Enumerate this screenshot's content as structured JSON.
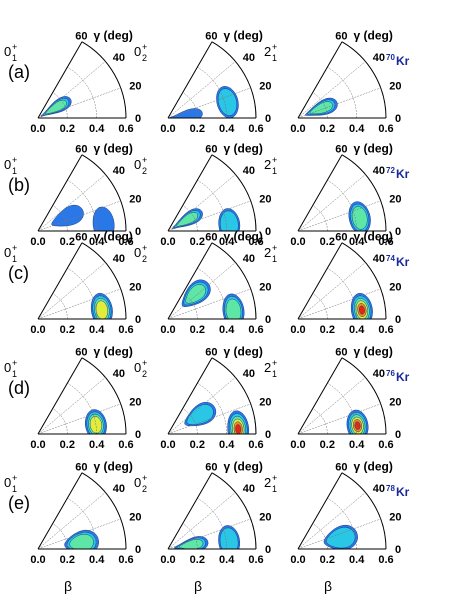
{
  "figure": {
    "row_labels": [
      "(a)",
      "(b)",
      "(c)",
      "(d)",
      "(e)"
    ],
    "isotopes": [
      {
        "mass": "70",
        "symbol": "Kr"
      },
      {
        "mass": "72",
        "symbol": "Kr"
      },
      {
        "mass": "74",
        "symbol": "Kr"
      },
      {
        "mass": "76",
        "symbol": "Kr"
      },
      {
        "mass": "78",
        "symbol": "Kr"
      }
    ],
    "column_states": [
      {
        "main": "0",
        "sup": "+",
        "sub": "1"
      },
      {
        "main": "0",
        "sup": "+",
        "sub": "2"
      },
      {
        "main": "2",
        "sup": "+",
        "sub": "1"
      }
    ],
    "gamma_axis_label": "γ (deg)",
    "beta_axis_label": "β",
    "beta_ticks": [
      "0.0",
      "0.2",
      "0.4",
      "0.6"
    ],
    "gamma_ticks": [
      "0",
      "20",
      "40",
      "60"
    ]
  },
  "chart_data": {
    "type": "heatmap",
    "description_kind": "polar contour maps of collective wave function squared in (beta, gamma) plane",
    "axes": {
      "r": {
        "label": "β",
        "range": [
          0.0,
          0.6
        ],
        "ticks": [
          0.0,
          0.2,
          0.4,
          0.6
        ]
      },
      "theta": {
        "label": "γ (deg)",
        "range": [
          0,
          60
        ],
        "ticks": [
          0,
          20,
          40,
          60
        ]
      }
    },
    "colors": [
      "#2a78e8",
      "#29c6e6",
      "#5ee6a6",
      "#e2ec3a",
      "#f28a1c",
      "#e02814"
    ],
    "panels": [
      {
        "row": "(a)",
        "isotope": "70Kr",
        "state": "0+1",
        "peaks": [
          {
            "beta": 0.14,
            "gamma": 30,
            "level": 3
          }
        ]
      },
      {
        "row": "(a)",
        "isotope": "70Kr",
        "state": "0+2",
        "peaks": [
          {
            "beta": 0.12,
            "gamma": 8,
            "level": 1
          },
          {
            "beta": 0.42,
            "gamma": 15,
            "level": 2
          }
        ]
      },
      {
        "row": "(a)",
        "isotope": "70Kr",
        "state": "2+1",
        "peaks": [
          {
            "beta": 0.17,
            "gamma": 22,
            "level": 3
          }
        ]
      },
      {
        "row": "(b)",
        "isotope": "72Kr",
        "state": "0+1",
        "peaks": [
          {
            "beta": 0.22,
            "gamma": 25,
            "level": 1
          },
          {
            "beta": 0.45,
            "gamma": 6,
            "level": 1
          }
        ]
      },
      {
        "row": "(b)",
        "isotope": "72Kr",
        "state": "0+2",
        "peaks": [
          {
            "beta": 0.15,
            "gamma": 30,
            "level": 3
          },
          {
            "beta": 0.42,
            "gamma": 6,
            "level": 2
          }
        ]
      },
      {
        "row": "(b)",
        "isotope": "72Kr",
        "state": "2+1",
        "peaks": [
          {
            "beta": 0.43,
            "gamma": 12,
            "level": 3
          }
        ]
      },
      {
        "row": "(c)",
        "isotope": "74Kr",
        "state": "0+1",
        "peaks": [
          {
            "beta": 0.44,
            "gamma": 8,
            "level": 4
          }
        ]
      },
      {
        "row": "(c)",
        "isotope": "74Kr",
        "state": "0+2",
        "peaks": [
          {
            "beta": 0.25,
            "gamma": 42,
            "level": 3
          },
          {
            "beta": 0.45,
            "gamma": 7,
            "level": 3
          }
        ]
      },
      {
        "row": "(c)",
        "isotope": "74Kr",
        "state": "2+1",
        "peaks": [
          {
            "beta": 0.44,
            "gamma": 8,
            "level": 6
          }
        ]
      },
      {
        "row": "(d)",
        "isotope": "76Kr",
        "state": "0+1",
        "peaks": [
          {
            "beta": 0.4,
            "gamma": 9,
            "level": 4
          }
        ]
      },
      {
        "row": "(d)",
        "isotope": "76Kr",
        "state": "0+2",
        "peaks": [
          {
            "beta": 0.25,
            "gamma": 30,
            "level": 2
          },
          {
            "beta": 0.48,
            "gamma": 4,
            "level": 6
          }
        ]
      },
      {
        "row": "(d)",
        "isotope": "76Kr",
        "state": "2+1",
        "peaks": [
          {
            "beta": 0.41,
            "gamma": 8,
            "level": 6
          }
        ]
      },
      {
        "row": "(e)",
        "isotope": "78Kr",
        "state": "0+1",
        "peaks": [
          {
            "beta": 0.3,
            "gamma": 8,
            "level": 3
          }
        ]
      },
      {
        "row": "(e)",
        "isotope": "78Kr",
        "state": "0+2",
        "peaks": [
          {
            "beta": 0.16,
            "gamma": 10,
            "level": 3
          },
          {
            "beta": 0.42,
            "gamma": 7,
            "level": 2
          }
        ]
      },
      {
        "row": "(e)",
        "isotope": "78Kr",
        "state": "2+1",
        "peaks": [
          {
            "beta": 0.3,
            "gamma": 14,
            "level": 2
          }
        ]
      }
    ]
  }
}
